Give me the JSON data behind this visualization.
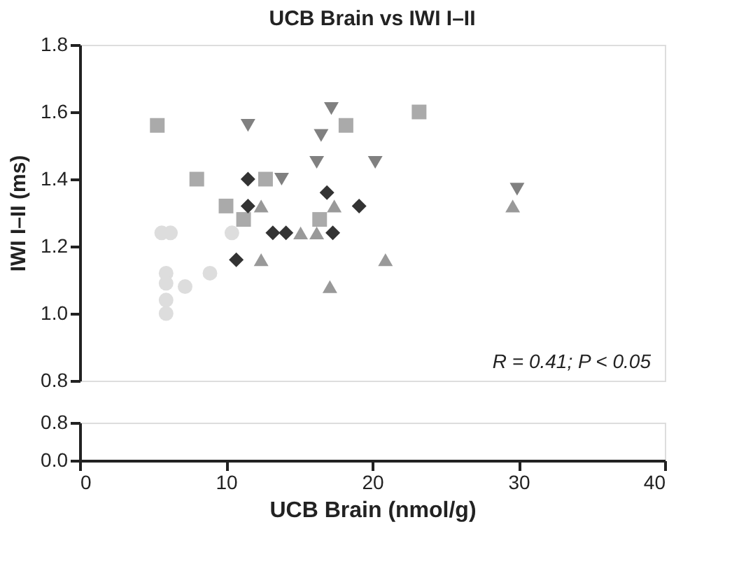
{
  "chart_data": [
    {
      "type": "scatter",
      "title": "UCB Brain vs IWI I–II",
      "ylabel": "IWI I–II (ms)",
      "xlim": [
        0,
        40
      ],
      "ylim": [
        0.8,
        1.8
      ],
      "yticks": [
        0.8,
        {
          "value": 1,
          "label": "1.0"
        },
        1.2,
        1.4,
        1.6,
        1.8
      ],
      "tick_labels": "y",
      "grid": false,
      "annotations": [
        "R = 0.41; P < 0.05"
      ],
      "series": [
        {
          "color": "#aaaaaa",
          "marker": "square",
          "x": [
            5.3,
            8.0,
            12.7,
            10.0,
            11.2,
            23.2,
            18.2,
            16.4
          ],
          "values": [
            1.56,
            1.4,
            1.4,
            1.32,
            1.28,
            1.6,
            1.56,
            1.28
          ]
        },
        {
          "color": "#808080",
          "marker": "triangle-down",
          "x": [
            11.5,
            13.8,
            17.2,
            16.5,
            16.2,
            20.2,
            29.9
          ],
          "values": [
            1.56,
            1.4,
            1.61,
            1.53,
            1.45,
            1.45,
            1.37
          ]
        },
        {
          "color": "#999999",
          "marker": "triangle",
          "x": [
            12.4,
            12.4,
            15.1,
            16.2,
            17.4,
            20.9,
            17.1,
            29.6
          ],
          "values": [
            1.32,
            1.16,
            1.24,
            1.24,
            1.32,
            1.16,
            1.08,
            1.32
          ]
        },
        {
          "color": "#333333",
          "marker": "diamond",
          "x": [
            11.5,
            11.5,
            13.2,
            14.1,
            10.7,
            16.9,
            19.1,
            17.3
          ],
          "values": [
            1.4,
            1.32,
            1.24,
            1.24,
            1.16,
            1.36,
            1.32,
            1.24
          ]
        },
        {
          "color": "#dddddd",
          "marker": "circle",
          "x": [
            5.6,
            6.2,
            10.4,
            5.9,
            7.2,
            5.9,
            5.9,
            5.9,
            8.9
          ],
          "values": [
            1.24,
            1.24,
            1.24,
            1.12,
            1.08,
            1.09,
            1.04,
            1.0,
            1.12
          ]
        }
      ]
    },
    {
      "type": "scatter",
      "xlabel": "UCB Brain (nmol/g)",
      "xlim": [
        0,
        40
      ],
      "xticks": [
        0,
        10,
        20,
        30,
        40
      ],
      "ylim": [
        0,
        0.8
      ],
      "yticks": [
        {
          "value": 0,
          "label": "0.0"
        },
        0.8
      ],
      "grid": false
    }
  ]
}
